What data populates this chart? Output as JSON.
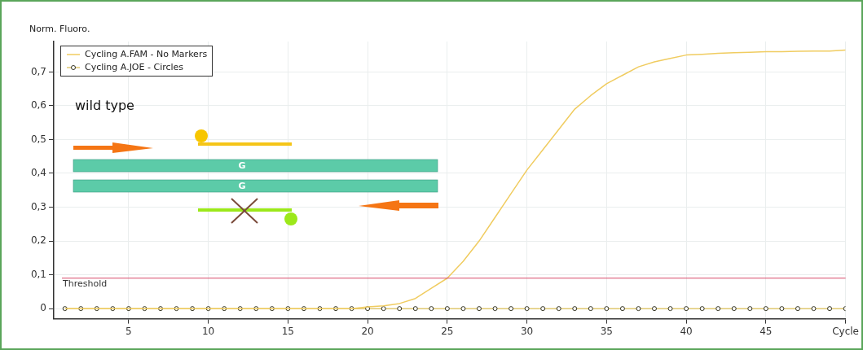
{
  "chart_data": {
    "type": "line",
    "ylabel": "Norm. Fluoro.",
    "x": [
      1,
      2,
      3,
      4,
      5,
      6,
      7,
      8,
      9,
      10,
      11,
      12,
      13,
      14,
      15,
      16,
      17,
      18,
      19,
      20,
      21,
      22,
      23,
      24,
      25,
      26,
      27,
      28,
      29,
      30,
      31,
      32,
      33,
      34,
      35,
      36,
      37,
      38,
      39,
      40,
      41,
      42,
      43,
      44,
      45,
      46,
      47,
      48,
      49,
      50
    ],
    "series": [
      {
        "name": "Cycling A.FAM - No Markers",
        "color": "#f0cc60",
        "marker": "none",
        "values": [
          0,
          0,
          0,
          0,
          0,
          0,
          0,
          0,
          0,
          0,
          0,
          0,
          0,
          0,
          0,
          0,
          0,
          0,
          0,
          0.005,
          0.008,
          0.015,
          0.03,
          0.06,
          0.09,
          0.14,
          0.2,
          0.27,
          0.34,
          0.41,
          0.47,
          0.53,
          0.59,
          0.63,
          0.665,
          0.69,
          0.715,
          0.73,
          0.74,
          0.75,
          0.752,
          0.755,
          0.757,
          0.758,
          0.76,
          0.76,
          0.761,
          0.762,
          0.762,
          0.765
        ]
      },
      {
        "name": "Cycling A.JOE - Circles",
        "color": "#e0c870",
        "marker": "circle",
        "values": [
          0,
          0,
          0,
          0,
          0,
          0,
          0,
          0,
          0,
          0,
          0,
          0,
          0,
          0,
          0,
          0,
          0,
          0,
          0,
          0,
          0,
          0,
          0,
          0,
          0,
          0,
          0,
          0,
          0,
          0,
          0,
          0,
          0,
          0,
          0,
          0,
          0,
          0,
          0,
          0,
          0,
          0,
          0,
          0,
          0,
          0,
          0,
          0,
          0,
          0
        ]
      }
    ],
    "xlim": [
      0.3,
      50
    ],
    "ylim": [
      -0.03,
      0.79
    ],
    "xticks": [
      5,
      10,
      15,
      20,
      25,
      30,
      35,
      40,
      45,
      {
        "value": 50,
        "label": "Cycle"
      }
    ],
    "yticks": [
      0,
      {
        "value": 0.1,
        "label": "0,1"
      },
      {
        "value": 0.2,
        "label": "0,2"
      },
      {
        "value": 0.3,
        "label": "0,3"
      },
      {
        "value": 0.4,
        "label": "0,4"
      },
      {
        "value": 0.5,
        "label": "0,5"
      },
      {
        "value": 0.6,
        "label": "0,6"
      },
      {
        "value": 0.7,
        "label": "0,7"
      }
    ],
    "ref_lines": [
      {
        "axis": "y",
        "value": 0.09,
        "label": "Threshold",
        "color": "#d84a6a"
      }
    ],
    "annotations": [
      "wild type",
      "G",
      "G"
    ],
    "grid": true,
    "legend": "top left"
  }
}
